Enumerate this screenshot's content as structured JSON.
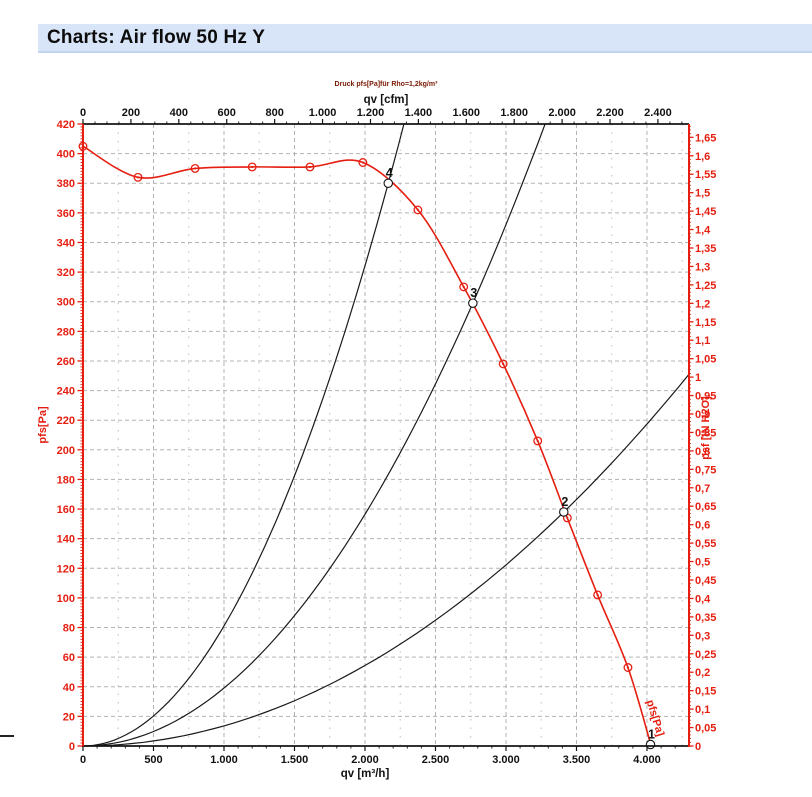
{
  "page": {
    "title": "Charts: Air flow 50 Hz Y"
  },
  "chart_data": {
    "type": "line",
    "title": "Druck pfs[Pa]für Rho=1,2kg/m³",
    "x_axis_bottom": {
      "label": "qv [m³/h]",
      "range": [
        0,
        4298
      ],
      "tick_values": [
        0,
        500,
        1000,
        1500,
        2000,
        2500,
        3000,
        3500,
        4000
      ],
      "tick_labels": [
        "0",
        "500",
        "1.000",
        "1.500",
        "2.000",
        "2.500",
        "3.000",
        "3.500",
        "4.000"
      ],
      "minor_step": 100
    },
    "x_axis_top": {
      "label": "qv [cfm]",
      "range": [
        0,
        2530
      ],
      "tick_values": [
        0,
        200,
        400,
        600,
        800,
        1000,
        1200,
        1400,
        1600,
        1800,
        2000,
        2200,
        2400
      ],
      "tick_labels": [
        "0",
        "200",
        "400",
        "600",
        "800",
        "1.000",
        "1.200",
        "1.400",
        "1.600",
        "1.800",
        "2.000",
        "2.200",
        "2.400"
      ],
      "minor_step": 50
    },
    "y_axis_left": {
      "label": "pfs[Pa]",
      "range": [
        0,
        420
      ],
      "tick_values": [
        0,
        20,
        40,
        60,
        80,
        100,
        120,
        140,
        160,
        180,
        200,
        220,
        240,
        260,
        280,
        300,
        320,
        340,
        360,
        380,
        400,
        420
      ],
      "tick_labels": [
        "0",
        "20",
        "40",
        "60",
        "80",
        "100",
        "120",
        "140",
        "160",
        "180",
        "200",
        "220",
        "240",
        "260",
        "280",
        "300",
        "320",
        "340",
        "360",
        "380",
        "400",
        "420"
      ],
      "minor_step": 2
    },
    "y_axis_right": {
      "label": "psf [IN H2O]",
      "range": [
        0,
        1.686
      ],
      "tick_values": [
        0,
        0.05,
        0.1,
        0.15,
        0.2,
        0.25,
        0.3,
        0.35,
        0.4,
        0.45,
        0.5,
        0.55,
        0.6,
        0.65,
        0.7,
        0.75,
        0.8,
        0.85,
        0.9,
        0.95,
        1,
        1.05,
        1.1,
        1.15,
        1.2,
        1.25,
        1.3,
        1.35,
        1.4,
        1.45,
        1.5,
        1.55,
        1.6,
        1.65
      ],
      "tick_labels": [
        "0",
        "0,05",
        "0,1",
        "0,15",
        "0,2",
        "0,25",
        "0,3",
        "0,35",
        "0,4",
        "0,45",
        "0,5",
        "0,55",
        "0,6",
        "0,65",
        "0,7",
        "0,75",
        "0,8",
        "0,85",
        "0,9",
        "0,95",
        "1",
        "1,05",
        "1,1",
        "1,15",
        "1,2",
        "1,25",
        "1,3",
        "1,35",
        "1,4",
        "1,45",
        "1,5",
        "1,55",
        "1,6",
        "1,65"
      ],
      "minor_step": 0.01
    },
    "series": [
      {
        "name": "fan-pressure-curve",
        "kind": "measured",
        "inline_label": "pfs[Pa]",
        "color": "#e51e10",
        "points": [
          [
            0,
            405
          ],
          [
            390,
            384
          ],
          [
            795,
            390
          ],
          [
            1200,
            391
          ],
          [
            1610,
            391
          ],
          [
            1985,
            394
          ],
          [
            2375,
            362
          ],
          [
            2700,
            310
          ],
          [
            2980,
            258
          ],
          [
            3225,
            206
          ],
          [
            3435,
            154
          ],
          [
            3650,
            102
          ],
          [
            3865,
            53
          ],
          [
            4030,
            0
          ]
        ]
      },
      {
        "name": "system-curve-1",
        "kind": "parabola",
        "color": "#1a1a1a",
        "parabola_through": [
          3410,
          158
        ]
      },
      {
        "name": "system-curve-2",
        "kind": "parabola",
        "color": "#1a1a1a",
        "parabola_through": [
          2765,
          299
        ]
      },
      {
        "name": "system-curve-3",
        "kind": "parabola",
        "color": "#1a1a1a",
        "parabola_through": [
          2165,
          380
        ]
      }
    ],
    "operating_points": [
      {
        "label": "1",
        "q": 4025,
        "p": 1
      },
      {
        "label": "2",
        "q": 3410,
        "p": 158
      },
      {
        "label": "3",
        "q": 2765,
        "p": 299
      },
      {
        "label": "4",
        "q": 2165,
        "p": 380
      }
    ],
    "grid": {
      "h_step": 20,
      "v_step": 500,
      "v_minor_step": 250,
      "color": "#b3b3b3",
      "minor_color": "#bfbfbf"
    },
    "colors": {
      "axis_red": "#e51e10",
      "axis_black": "#141414",
      "caption_red": "#7a1a05",
      "label_black": "#111111"
    }
  }
}
